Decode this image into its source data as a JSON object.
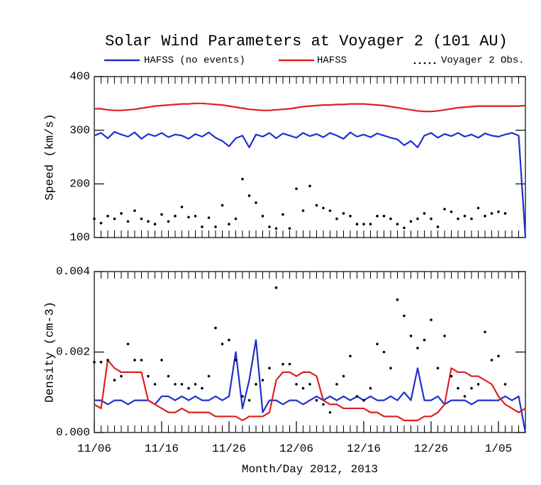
{
  "chart_data": [
    {
      "type": "line",
      "title": "Solar Wind Parameters at Voyager 2 (101 AU)",
      "ylabel": "Speed (km/s)",
      "x": [
        "2012-11-06",
        "2012-11-07",
        "2012-11-08",
        "2012-11-09",
        "2012-11-10",
        "2012-11-11",
        "2012-11-12",
        "2012-11-13",
        "2012-11-14",
        "2012-11-15",
        "2012-11-16",
        "2012-11-17",
        "2012-11-18",
        "2012-11-19",
        "2012-11-20",
        "2012-11-21",
        "2012-11-22",
        "2012-11-23",
        "2012-11-24",
        "2012-11-25",
        "2012-11-26",
        "2012-11-27",
        "2012-11-28",
        "2012-11-29",
        "2012-11-30",
        "2012-12-01",
        "2012-12-02",
        "2012-12-03",
        "2012-12-04",
        "2012-12-05",
        "2012-12-06",
        "2012-12-07",
        "2012-12-08",
        "2012-12-09",
        "2012-12-10",
        "2012-12-11",
        "2012-12-12",
        "2012-12-13",
        "2012-12-14",
        "2012-12-15",
        "2012-12-16",
        "2012-12-17",
        "2012-12-18",
        "2012-12-19",
        "2012-12-20",
        "2012-12-21",
        "2012-12-22",
        "2012-12-23",
        "2012-12-24",
        "2012-12-25",
        "2012-12-26",
        "2012-12-27",
        "2012-12-28",
        "2012-12-29",
        "2012-12-30",
        "2012-12-31",
        "2013-01-01",
        "2013-01-02",
        "2013-01-03",
        "2013-01-04",
        "2013-01-05",
        "2013-01-06",
        "2013-01-07",
        "2013-01-08",
        "2013-01-09"
      ],
      "xlim": [
        "2012-11-06",
        "2013-01-09"
      ],
      "ylim": [
        100,
        400
      ],
      "yticks": [
        100,
        200,
        300,
        400
      ],
      "series": [
        {
          "name": "HAFSS (no events)",
          "color": "#1f2fd0",
          "values": [
            290,
            295,
            285,
            297,
            292,
            288,
            296,
            284,
            293,
            289,
            295,
            287,
            292,
            290,
            284,
            293,
            288,
            296,
            286,
            280,
            270,
            285,
            290,
            268,
            292,
            288,
            295,
            285,
            294,
            290,
            286,
            295,
            289,
            293,
            287,
            295,
            290,
            284,
            296,
            288,
            292,
            287,
            294,
            290,
            286,
            283,
            272,
            280,
            268,
            290,
            295,
            286,
            293,
            289,
            295,
            288,
            292,
            286,
            294,
            290,
            288,
            292,
            295,
            290,
            100
          ]
        },
        {
          "name": "HAFSS",
          "color": "#e02020",
          "values": [
            340,
            340,
            338,
            337,
            337,
            338,
            339,
            341,
            343,
            345,
            346,
            347,
            348,
            349,
            349,
            350,
            350,
            349,
            348,
            347,
            345,
            343,
            341,
            339,
            338,
            337,
            337,
            338,
            339,
            340,
            342,
            344,
            345,
            346,
            347,
            347,
            348,
            348,
            349,
            349,
            349,
            348,
            347,
            346,
            344,
            342,
            340,
            338,
            336,
            335,
            335,
            336,
            338,
            340,
            342,
            343,
            344,
            345,
            345,
            345,
            345,
            345,
            345,
            345,
            346
          ]
        },
        {
          "name": "Voyager 2 Obs.",
          "type": "scatter",
          "color": "#000000",
          "values": [
            135,
            127,
            140,
            135,
            145,
            130,
            150,
            135,
            130,
            125,
            143,
            130,
            140,
            157,
            138,
            140,
            120,
            137,
            120,
            160,
            125,
            135,
            209,
            178,
            165,
            140,
            120,
            117,
            143,
            117,
            191,
            150,
            196,
            160,
            155,
            150,
            135,
            145,
            140,
            125,
            125,
            125,
            140,
            140,
            135,
            125,
            118,
            130,
            135,
            145,
            135,
            120,
            153,
            148,
            135,
            140,
            135,
            155,
            140,
            145,
            148,
            145,
            null,
            null,
            null
          ]
        }
      ]
    },
    {
      "type": "line",
      "ylabel": "Density (cm-3)",
      "xlabel": "Month/Day 2012, 2013",
      "x": [
        "2012-11-06",
        "2012-11-07",
        "2012-11-08",
        "2012-11-09",
        "2012-11-10",
        "2012-11-11",
        "2012-11-12",
        "2012-11-13",
        "2012-11-14",
        "2012-11-15",
        "2012-11-16",
        "2012-11-17",
        "2012-11-18",
        "2012-11-19",
        "2012-11-20",
        "2012-11-21",
        "2012-11-22",
        "2012-11-23",
        "2012-11-24",
        "2012-11-25",
        "2012-11-26",
        "2012-11-27",
        "2012-11-28",
        "2012-11-29",
        "2012-11-30",
        "2012-12-01",
        "2012-12-02",
        "2012-12-03",
        "2012-12-04",
        "2012-12-05",
        "2012-12-06",
        "2012-12-07",
        "2012-12-08",
        "2012-12-09",
        "2012-12-10",
        "2012-12-11",
        "2012-12-12",
        "2012-12-13",
        "2012-12-14",
        "2012-12-15",
        "2012-12-16",
        "2012-12-17",
        "2012-12-18",
        "2012-12-19",
        "2012-12-20",
        "2012-12-21",
        "2012-12-22",
        "2012-12-23",
        "2012-12-24",
        "2012-12-25",
        "2012-12-26",
        "2012-12-27",
        "2012-12-28",
        "2012-12-29",
        "2012-12-30",
        "2012-12-31",
        "2013-01-01",
        "2013-01-02",
        "2013-01-03",
        "2013-01-04",
        "2013-01-05",
        "2013-01-06",
        "2013-01-07",
        "2013-01-08",
        "2013-01-09"
      ],
      "xlim": [
        "2012-11-06",
        "2013-01-09"
      ],
      "xticks": [
        {
          "value": "2012-11-06",
          "label": "11/06"
        },
        {
          "value": "2012-11-16",
          "label": "11/16"
        },
        {
          "value": "2012-11-26",
          "label": "11/26"
        },
        {
          "value": "2012-12-06",
          "label": "12/06"
        },
        {
          "value": "2012-12-16",
          "label": "12/16"
        },
        {
          "value": "2012-12-26",
          "label": "12/26"
        },
        {
          "value": "2013-01-05",
          "label": "1/05"
        }
      ],
      "ylim": [
        0,
        0.004
      ],
      "yticks": [
        {
          "value": 0,
          "label": "0.000"
        },
        {
          "value": 0.002,
          "label": "0.002"
        },
        {
          "value": 0.004,
          "label": "0.004"
        }
      ],
      "series": [
        {
          "name": "HAFSS (no events)",
          "color": "#1f2fd0",
          "values": [
            0.0008,
            0.0008,
            0.0007,
            0.0008,
            0.0008,
            0.0007,
            0.0008,
            0.0008,
            0.0008,
            0.0007,
            0.0009,
            0.0009,
            0.0008,
            0.0009,
            0.0008,
            0.0009,
            0.0008,
            0.0008,
            0.0009,
            0.0008,
            0.0009,
            0.002,
            0.0006,
            0.0013,
            0.0023,
            0.0005,
            0.0008,
            0.0008,
            0.0007,
            0.0008,
            0.0008,
            0.0007,
            0.0008,
            0.0009,
            0.0008,
            0.0009,
            0.0008,
            0.0009,
            0.0008,
            0.0009,
            0.0008,
            0.0009,
            0.0008,
            0.0008,
            0.0009,
            0.0008,
            0.001,
            0.0008,
            0.0016,
            0.0008,
            0.0008,
            0.0009,
            0.0007,
            0.0008,
            0.0008,
            0.0008,
            0.0007,
            0.0008,
            0.0008,
            0.0008,
            0.0008,
            0.0009,
            0.0008,
            0.0009,
            0
          ]
        },
        {
          "name": "HAFSS",
          "color": "#e02020",
          "values": [
            0.0007,
            0.0006,
            0.0018,
            0.0016,
            0.0015,
            0.0015,
            0.0015,
            0.0015,
            0.0008,
            0.0007,
            0.0006,
            0.0005,
            0.0005,
            0.0006,
            0.0005,
            0.0005,
            0.0005,
            0.0005,
            0.0004,
            0.0004,
            0.0004,
            0.0004,
            0.0003,
            0.0004,
            0.0004,
            0.0004,
            0.0005,
            0.0013,
            0.0015,
            0.0015,
            0.0014,
            0.0015,
            0.0015,
            0.0014,
            0.0008,
            0.0007,
            0.0007,
            0.0006,
            0.0006,
            0.0006,
            0.0006,
            0.0005,
            0.0005,
            0.0004,
            0.0004,
            0.0004,
            0.0003,
            0.0003,
            0.0003,
            0.0004,
            0.0004,
            0.0005,
            0.0007,
            0.0016,
            0.0015,
            0.0015,
            0.0014,
            0.0014,
            0.0013,
            0.0012,
            0.0009,
            0.0007,
            0.0006,
            0.0005,
            0.0006
          ]
        },
        {
          "name": "Voyager 2 Obs.",
          "type": "scatter",
          "color": "#000000",
          "values": [
            0.00175,
            0.00175,
            0.0018,
            0.0013,
            0.0014,
            0.0022,
            0.0018,
            0.0018,
            0.0014,
            0.0012,
            0.0018,
            0.0014,
            0.0012,
            0.0012,
            0.0011,
            0.0012,
            0.0011,
            0.0014,
            0.0026,
            0.0022,
            0.0023,
            0.0018,
            0.0009,
            0.0008,
            0.0012,
            0.0013,
            0.0016,
            0.0036,
            0.0017,
            0.0017,
            0.0012,
            0.0011,
            0.0012,
            0.0008,
            0.0007,
            0.0005,
            0.0012,
            0.0014,
            0.0019,
            0.0009,
            0.0008,
            0.0011,
            0.0022,
            0.002,
            0.0016,
            0.0033,
            0.0029,
            0.0024,
            0.0021,
            0.0023,
            0.0028,
            0.0016,
            0.0024,
            0.0014,
            0.0011,
            0.0009,
            0.0011,
            0.0012,
            0.0025,
            0.0018,
            0.0019,
            0.0012,
            null,
            null,
            null
          ]
        }
      ]
    }
  ]
}
